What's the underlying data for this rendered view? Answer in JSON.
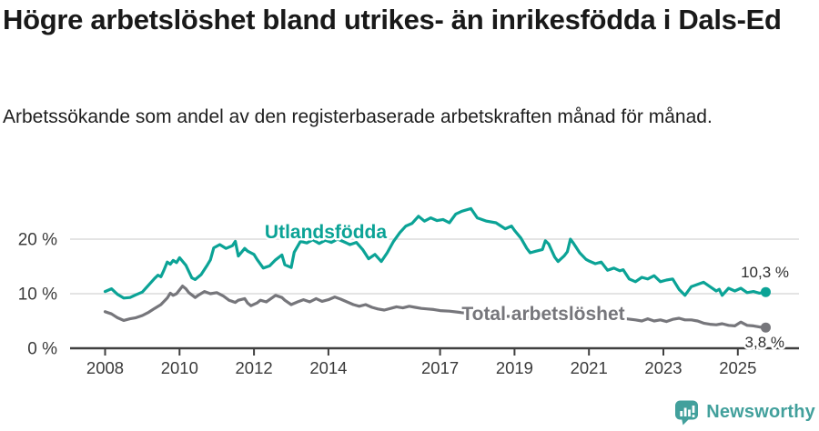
{
  "header": {
    "title": "Högre arbetslöshet bland utrikes- än inrikesfödda i Dals-Ed",
    "subtitle": "Arbetssökande som andel av den registerbaserade arbetskraften månad för månad."
  },
  "chart_data": {
    "type": "line",
    "title": "Högre arbetslöshet bland utrikes- än inrikesfödda i Dals-Ed",
    "subtitle": "Arbetssökande som andel av den registerbaserade arbetskraften månad för månad.",
    "unit": "%",
    "grid": "horizontal",
    "legend_position": "inline-labels",
    "x_axis": {
      "range": [
        2008,
        2025.9
      ],
      "ticks": [
        {
          "value": 2008,
          "label": "2008"
        },
        {
          "value": 2010,
          "label": "2010"
        },
        {
          "value": 2012,
          "label": "2012"
        },
        {
          "value": 2014,
          "label": "2014"
        },
        {
          "value": 2017,
          "label": "2017"
        },
        {
          "value": 2019,
          "label": "2019"
        },
        {
          "value": 2021,
          "label": "2021"
        },
        {
          "value": 2023,
          "label": "2023"
        },
        {
          "value": 2025,
          "label": "2025"
        }
      ]
    },
    "y_axis": {
      "range": [
        0,
        27
      ],
      "ticks": [
        {
          "value": 0,
          "label": "0 %"
        },
        {
          "value": 10,
          "label": "10 %"
        },
        {
          "value": 20,
          "label": "20 %"
        }
      ]
    },
    "series": [
      {
        "name": "Utlandsfödda",
        "color": "#0ba396",
        "end_label": "10,3 %",
        "last_value": 10.3,
        "points": [
          [
            2008.0,
            10.4
          ],
          [
            2008.17,
            10.9
          ],
          [
            2008.33,
            9.9
          ],
          [
            2008.5,
            9.2
          ],
          [
            2008.67,
            9.3
          ],
          [
            2008.83,
            9.8
          ],
          [
            2009.0,
            10.3
          ],
          [
            2009.17,
            11.6
          ],
          [
            2009.33,
            12.8
          ],
          [
            2009.42,
            13.4
          ],
          [
            2009.5,
            13.1
          ],
          [
            2009.58,
            14.3
          ],
          [
            2009.67,
            15.8
          ],
          [
            2009.75,
            15.4
          ],
          [
            2009.83,
            16.1
          ],
          [
            2009.92,
            15.7
          ],
          [
            2010.0,
            16.6
          ],
          [
            2010.17,
            15.2
          ],
          [
            2010.33,
            12.9
          ],
          [
            2010.42,
            12.6
          ],
          [
            2010.58,
            13.5
          ],
          [
            2010.75,
            15.3
          ],
          [
            2010.83,
            16.2
          ],
          [
            2010.92,
            18.4
          ],
          [
            2011.08,
            19.0
          ],
          [
            2011.25,
            18.3
          ],
          [
            2011.42,
            18.8
          ],
          [
            2011.5,
            19.6
          ],
          [
            2011.58,
            16.9
          ],
          [
            2011.75,
            18.3
          ],
          [
            2011.83,
            17.8
          ],
          [
            2012.0,
            17.2
          ],
          [
            2012.08,
            16.3
          ],
          [
            2012.25,
            14.7
          ],
          [
            2012.42,
            15.1
          ],
          [
            2012.58,
            16.2
          ],
          [
            2012.75,
            17.1
          ],
          [
            2012.83,
            15.3
          ],
          [
            2013.0,
            14.8
          ],
          [
            2013.08,
            17.6
          ],
          [
            2013.25,
            19.6
          ],
          [
            2013.42,
            19.3
          ],
          [
            2013.58,
            19.9
          ],
          [
            2013.75,
            19.2
          ],
          [
            2013.92,
            19.8
          ],
          [
            2014.08,
            19.4
          ],
          [
            2014.25,
            20.0
          ],
          [
            2014.42,
            19.5
          ],
          [
            2014.58,
            19.0
          ],
          [
            2014.75,
            19.4
          ],
          [
            2014.92,
            18.1
          ],
          [
            2015.08,
            16.4
          ],
          [
            2015.25,
            17.2
          ],
          [
            2015.42,
            15.9
          ],
          [
            2015.58,
            17.5
          ],
          [
            2015.75,
            19.6
          ],
          [
            2015.92,
            21.2
          ],
          [
            2016.08,
            22.4
          ],
          [
            2016.25,
            22.9
          ],
          [
            2016.42,
            24.2
          ],
          [
            2016.58,
            23.3
          ],
          [
            2016.75,
            23.9
          ],
          [
            2016.92,
            23.4
          ],
          [
            2017.08,
            23.6
          ],
          [
            2017.25,
            23.0
          ],
          [
            2017.42,
            24.6
          ],
          [
            2017.58,
            25.1
          ],
          [
            2017.83,
            25.6
          ],
          [
            2018.0,
            23.9
          ],
          [
            2018.25,
            23.3
          ],
          [
            2018.5,
            23.0
          ],
          [
            2018.75,
            21.9
          ],
          [
            2018.92,
            22.4
          ],
          [
            2019.0,
            21.6
          ],
          [
            2019.17,
            20.2
          ],
          [
            2019.33,
            18.3
          ],
          [
            2019.42,
            17.5
          ],
          [
            2019.58,
            17.8
          ],
          [
            2019.75,
            18.1
          ],
          [
            2019.83,
            19.7
          ],
          [
            2019.92,
            19.1
          ],
          [
            2020.08,
            16.7
          ],
          [
            2020.17,
            15.9
          ],
          [
            2020.33,
            16.9
          ],
          [
            2020.42,
            17.7
          ],
          [
            2020.5,
            20.0
          ],
          [
            2020.58,
            19.3
          ],
          [
            2020.75,
            17.5
          ],
          [
            2020.92,
            16.3
          ],
          [
            2021.0,
            16.0
          ],
          [
            2021.17,
            15.5
          ],
          [
            2021.33,
            15.8
          ],
          [
            2021.5,
            14.3
          ],
          [
            2021.67,
            14.7
          ],
          [
            2021.83,
            14.2
          ],
          [
            2021.92,
            14.4
          ],
          [
            2022.08,
            12.7
          ],
          [
            2022.25,
            12.2
          ],
          [
            2022.42,
            13.0
          ],
          [
            2022.58,
            12.7
          ],
          [
            2022.75,
            13.3
          ],
          [
            2022.92,
            12.2
          ],
          [
            2023.08,
            12.5
          ],
          [
            2023.25,
            12.7
          ],
          [
            2023.42,
            10.8
          ],
          [
            2023.58,
            9.7
          ],
          [
            2023.75,
            11.3
          ],
          [
            2023.92,
            11.7
          ],
          [
            2024.08,
            12.1
          ],
          [
            2024.25,
            11.3
          ],
          [
            2024.42,
            10.5
          ],
          [
            2024.5,
            10.8
          ],
          [
            2024.58,
            9.7
          ],
          [
            2024.75,
            11.0
          ],
          [
            2024.92,
            10.5
          ],
          [
            2025.08,
            11.0
          ],
          [
            2025.25,
            10.2
          ],
          [
            2025.42,
            10.4
          ],
          [
            2025.58,
            10.1
          ],
          [
            2025.75,
            10.3
          ]
        ]
      },
      {
        "name": "Total arbetslöshet",
        "color": "#76767b",
        "end_label": "3,8 %",
        "last_value": 3.8,
        "points": [
          [
            2008.0,
            6.7
          ],
          [
            2008.17,
            6.3
          ],
          [
            2008.33,
            5.6
          ],
          [
            2008.5,
            5.1
          ],
          [
            2008.67,
            5.4
          ],
          [
            2008.83,
            5.6
          ],
          [
            2009.0,
            6.0
          ],
          [
            2009.17,
            6.6
          ],
          [
            2009.33,
            7.3
          ],
          [
            2009.5,
            8.0
          ],
          [
            2009.67,
            9.2
          ],
          [
            2009.75,
            10.1
          ],
          [
            2009.83,
            9.7
          ],
          [
            2009.92,
            10.0
          ],
          [
            2010.08,
            11.4
          ],
          [
            2010.17,
            10.9
          ],
          [
            2010.25,
            10.2
          ],
          [
            2010.42,
            9.3
          ],
          [
            2010.5,
            9.7
          ],
          [
            2010.67,
            10.4
          ],
          [
            2010.83,
            10.0
          ],
          [
            2011.0,
            10.2
          ],
          [
            2011.17,
            9.6
          ],
          [
            2011.33,
            8.8
          ],
          [
            2011.5,
            8.4
          ],
          [
            2011.58,
            8.8
          ],
          [
            2011.75,
            9.1
          ],
          [
            2011.83,
            8.3
          ],
          [
            2011.92,
            7.8
          ],
          [
            2012.08,
            8.3
          ],
          [
            2012.17,
            8.8
          ],
          [
            2012.33,
            8.5
          ],
          [
            2012.5,
            9.3
          ],
          [
            2012.58,
            9.7
          ],
          [
            2012.75,
            9.3
          ],
          [
            2012.83,
            8.8
          ],
          [
            2013.0,
            8.0
          ],
          [
            2013.17,
            8.5
          ],
          [
            2013.33,
            8.9
          ],
          [
            2013.5,
            8.5
          ],
          [
            2013.67,
            9.1
          ],
          [
            2013.83,
            8.6
          ],
          [
            2014.0,
            8.9
          ],
          [
            2014.17,
            9.4
          ],
          [
            2014.33,
            9.0
          ],
          [
            2014.5,
            8.5
          ],
          [
            2014.67,
            8.0
          ],
          [
            2014.83,
            7.7
          ],
          [
            2015.0,
            8.0
          ],
          [
            2015.17,
            7.5
          ],
          [
            2015.33,
            7.2
          ],
          [
            2015.5,
            7.0
          ],
          [
            2015.67,
            7.3
          ],
          [
            2015.83,
            7.6
          ],
          [
            2016.0,
            7.4
          ],
          [
            2016.17,
            7.7
          ],
          [
            2016.33,
            7.5
          ],
          [
            2016.5,
            7.3
          ],
          [
            2016.67,
            7.2
          ],
          [
            2016.83,
            7.1
          ],
          [
            2017.0,
            6.9
          ],
          [
            2017.25,
            6.8
          ],
          [
            2017.5,
            6.6
          ],
          [
            2017.75,
            6.4
          ],
          [
            2018.0,
            6.2
          ],
          [
            2018.33,
            6.1
          ],
          [
            2018.67,
            5.9
          ],
          [
            2019.0,
            5.8
          ],
          [
            2019.33,
            5.7
          ],
          [
            2019.67,
            5.9
          ],
          [
            2020.0,
            6.0
          ],
          [
            2020.33,
            6.6
          ],
          [
            2020.5,
            6.8
          ],
          [
            2020.75,
            6.5
          ],
          [
            2021.0,
            6.3
          ],
          [
            2021.33,
            6.0
          ],
          [
            2021.67,
            5.7
          ],
          [
            2022.0,
            5.4
          ],
          [
            2022.25,
            5.2
          ],
          [
            2022.42,
            5.0
          ],
          [
            2022.58,
            5.4
          ],
          [
            2022.75,
            5.0
          ],
          [
            2022.92,
            5.2
          ],
          [
            2023.08,
            4.9
          ],
          [
            2023.25,
            5.3
          ],
          [
            2023.42,
            5.5
          ],
          [
            2023.58,
            5.2
          ],
          [
            2023.75,
            5.2
          ],
          [
            2023.92,
            5.0
          ],
          [
            2024.08,
            4.6
          ],
          [
            2024.25,
            4.4
          ],
          [
            2024.42,
            4.3
          ],
          [
            2024.58,
            4.5
          ],
          [
            2024.75,
            4.2
          ],
          [
            2024.92,
            4.1
          ],
          [
            2025.08,
            4.8
          ],
          [
            2025.25,
            4.2
          ],
          [
            2025.42,
            4.1
          ],
          [
            2025.58,
            3.9
          ],
          [
            2025.75,
            3.8
          ]
        ]
      }
    ],
    "colors": {
      "gridline": "#dcdcdc",
      "axis": "#3f3f3f",
      "axis_text": "#3b3b3b",
      "annotation_text": "#2d2d2d"
    }
  },
  "footer": {
    "brand": "Newsworthy",
    "brand_color": "#42a09c",
    "logo_icon": "bar-chart-speech-bubble-icon"
  }
}
